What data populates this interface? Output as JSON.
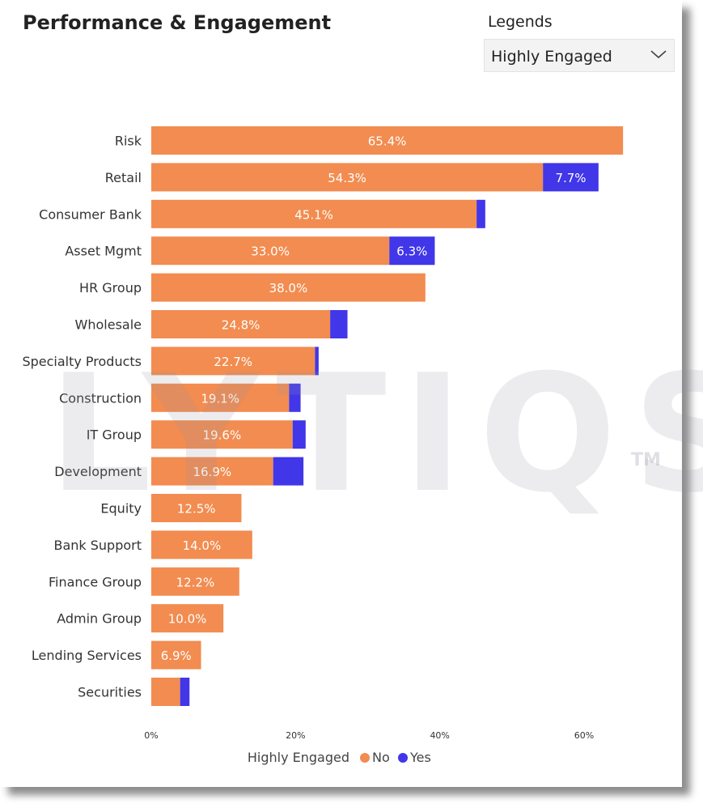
{
  "header": {
    "title": "Performance & Engagement",
    "legends_label": "Legends",
    "legends_selected": "Highly Engaged"
  },
  "watermark": {
    "text": "LYTIQS",
    "tm": "TM"
  },
  "colors": {
    "no": "#f28c50",
    "yes": "#4136e8"
  },
  "chart_data": {
    "type": "bar",
    "orientation": "horizontal",
    "stacked": true,
    "categories": [
      "Risk",
      "Retail",
      "Consumer Bank",
      "Asset Mgmt",
      "HR Group",
      "Wholesale",
      "Specialty Products",
      "Construction",
      "IT Group",
      "Development",
      "Equity",
      "Bank Support",
      "Finance Group",
      "Admin Group",
      "Lending Services",
      "Securities"
    ],
    "series": [
      {
        "name": "No",
        "values": [
          65.4,
          54.3,
          45.1,
          33.0,
          38.0,
          24.8,
          22.7,
          19.1,
          19.6,
          16.9,
          12.5,
          14.0,
          12.2,
          10.0,
          6.9,
          4.0
        ],
        "labels": [
          "65.4%",
          "54.3%",
          "45.1%",
          "33.0%",
          "38.0%",
          "24.8%",
          "22.7%",
          "19.1%",
          "19.6%",
          "16.9%",
          "12.5%",
          "14.0%",
          "12.2%",
          "10.0%",
          "6.9%",
          ""
        ]
      },
      {
        "name": "Yes",
        "values": [
          0,
          7.7,
          1.2,
          6.3,
          0,
          2.4,
          0.5,
          1.6,
          1.8,
          4.2,
          0,
          0,
          0,
          0,
          0,
          1.3
        ],
        "labels": [
          "",
          "7.7%",
          "",
          "6.3%",
          "",
          "",
          "",
          "",
          "",
          "",
          "",
          "",
          "",
          "",
          "",
          ""
        ]
      }
    ],
    "x_ticks": [
      0,
      20,
      40,
      60
    ],
    "x_tick_labels": [
      "0%",
      "20%",
      "40%",
      "60%"
    ],
    "xlim": [
      0,
      66
    ],
    "legend_title": "Highly Engaged",
    "legend_position": "bottom-center",
    "grid": false
  }
}
